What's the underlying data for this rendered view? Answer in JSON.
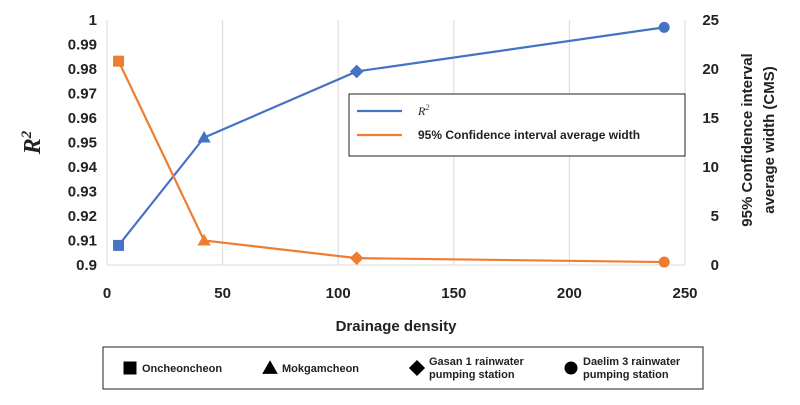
{
  "chart_data": {
    "type": "line",
    "xlabel": "Drainage density",
    "xlim": [
      0,
      250
    ],
    "x_ticks": [
      "0",
      "50",
      "100",
      "150",
      "200",
      "250"
    ],
    "y_left": {
      "label_base": "R",
      "label_sup": "2",
      "lim": [
        0.9,
        1.0
      ],
      "ticks": [
        "0.9",
        "0.91",
        "0.92",
        "0.93",
        "0.94",
        "0.95",
        "0.96",
        "0.97",
        "0.98",
        "0.99",
        "1"
      ]
    },
    "y_right": {
      "label_line1": "95% Confidence interval",
      "label_line2": "average width (CMS)",
      "lim": [
        0,
        25
      ],
      "ticks": [
        "0",
        "5",
        "10",
        "15",
        "20",
        "25"
      ]
    },
    "grid": "vertical",
    "series": [
      {
        "name_base": "R",
        "name_sup": "2",
        "axis": "left",
        "color": "#4472C4",
        "x": [
          5,
          42,
          108,
          241
        ],
        "values": [
          0.908,
          0.952,
          0.979,
          0.997
        ],
        "markers": [
          "square",
          "triangle",
          "diamond",
          "circle"
        ]
      },
      {
        "name": "95% Confidence interval average width",
        "axis": "right",
        "color": "#ED7D31",
        "x": [
          5,
          42,
          108,
          241
        ],
        "values": [
          20.8,
          2.5,
          0.7,
          0.3
        ],
        "markers": [
          "square",
          "triangle",
          "diamond",
          "circle"
        ]
      }
    ],
    "legend_placement": "right-middle",
    "symbol_legend": [
      {
        "marker": "square",
        "lines": [
          "Oncheoncheon"
        ]
      },
      {
        "marker": "triangle",
        "lines": [
          "Mokgamcheon"
        ]
      },
      {
        "marker": "diamond",
        "lines": [
          "Gasan 1 rainwater",
          "pumping station"
        ]
      },
      {
        "marker": "circle",
        "lines": [
          "Daelim 3 rainwater",
          "pumping station"
        ]
      }
    ]
  }
}
